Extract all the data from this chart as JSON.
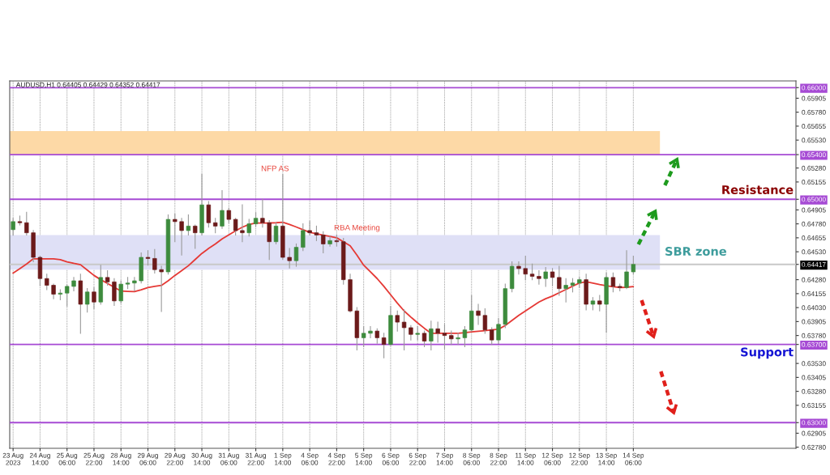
{
  "chart_data": {
    "type": "candlestick",
    "title": "AUDUSD,H1 0.64405 0.64429 0.64352 0.64417",
    "categories": [
      "23 Aug 2023",
      null,
      null,
      null,
      "24 Aug 14:00",
      null,
      null,
      null,
      "25 Aug 06:00",
      null,
      null,
      null,
      "25 Aug 22:00",
      null,
      null,
      null,
      "28 Aug 14:00",
      null,
      null,
      null,
      "29 Aug 06:00",
      null,
      null,
      null,
      "29 Aug 22:00",
      null,
      null,
      null,
      "30 Aug 14:00",
      null,
      null,
      null,
      "31 Aug 06:00",
      null,
      null,
      null,
      "31 Aug 22:00",
      null,
      null,
      null,
      "1 Sep 14:00",
      null,
      null,
      null,
      "4 Sep 06:00",
      null,
      null,
      null,
      "4 Sep 22:00",
      null,
      null,
      null,
      "5 Sep 14:00",
      null,
      null,
      null,
      "6 Sep 06:00",
      null,
      null,
      null,
      "6 Sep 22:00",
      null,
      null,
      null,
      "7 Sep 14:00",
      null,
      null,
      null,
      "8 Sep 06:00",
      null,
      null,
      null,
      "8 Sep 22:00",
      null,
      null,
      null,
      "11 Sep 14:00",
      null,
      null,
      null,
      "12 Sep 06:00",
      null,
      null,
      null,
      "12 Sep 22:00",
      null,
      null,
      null,
      "13 Sep 14:00",
      null,
      null,
      null,
      "14 Sep 06:00"
    ],
    "ohlc": [
      [
        0.64728,
        0.64829,
        0.64679,
        0.648
      ],
      [
        0.648,
        0.6485,
        0.6477,
        0.6479
      ],
      [
        0.6479,
        0.64884,
        0.6468,
        0.647
      ],
      [
        0.647,
        0.6472,
        0.6444,
        0.6448
      ],
      [
        0.6448,
        0.6449,
        0.6423,
        0.6429
      ],
      [
        0.6429,
        0.6433,
        0.6419,
        0.6423
      ],
      [
        0.6423,
        0.6424,
        0.6411,
        0.6415
      ],
      [
        0.6415,
        0.6419,
        0.641,
        0.6416
      ],
      [
        0.6416,
        0.6423,
        0.6404,
        0.6422
      ],
      [
        0.6422,
        0.643,
        0.6418,
        0.6427
      ],
      [
        0.6427,
        0.6433,
        0.638,
        0.6406
      ],
      [
        0.6406,
        0.642,
        0.6399,
        0.6417
      ],
      [
        0.6417,
        0.6421,
        0.6402,
        0.6408
      ],
      [
        0.6408,
        0.6441,
        0.6406,
        0.643
      ],
      [
        0.643,
        0.6436,
        0.6423,
        0.6426
      ],
      [
        0.6426,
        0.6429,
        0.6405,
        0.6409
      ],
      [
        0.6409,
        0.6427,
        0.6407,
        0.6424
      ],
      [
        0.6424,
        0.643,
        0.642,
        0.6425
      ],
      [
        0.6425,
        0.643,
        0.6418,
        0.6427
      ],
      [
        0.6427,
        0.6452,
        0.6425,
        0.6448
      ],
      [
        0.6448,
        0.6454,
        0.6441,
        0.6447
      ],
      [
        0.6447,
        0.6455,
        0.6434,
        0.6437
      ],
      [
        0.6437,
        0.644,
        0.63995,
        0.6435
      ],
      [
        0.6435,
        0.6486,
        0.6433,
        0.6482
      ],
      [
        0.6482,
        0.6487,
        0.6462,
        0.648
      ],
      [
        0.648,
        0.6483,
        0.645,
        0.6472
      ],
      [
        0.6472,
        0.6486,
        0.6468,
        0.6476
      ],
      [
        0.6476,
        0.6477,
        0.6456,
        0.647
      ],
      [
        0.647,
        0.65225,
        0.6468,
        0.6495
      ],
      [
        0.6495,
        0.6498,
        0.6475,
        0.6479
      ],
      [
        0.6479,
        0.6483,
        0.647,
        0.6476
      ],
      [
        0.6476,
        0.65077,
        0.6474,
        0.649
      ],
      [
        0.649,
        0.6492,
        0.6479,
        0.6482
      ],
      [
        0.6482,
        0.6483,
        0.6468,
        0.6472
      ],
      [
        0.6472,
        0.6495,
        0.6462,
        0.647
      ],
      [
        0.647,
        0.6482,
        0.6467,
        0.6478
      ],
      [
        0.6478,
        0.6488,
        0.6476,
        0.6483
      ],
      [
        0.6483,
        0.65,
        0.6475,
        0.6479
      ],
      [
        0.6479,
        0.6481,
        0.6446,
        0.6462
      ],
      [
        0.6462,
        0.6479,
        0.646,
        0.6476
      ],
      [
        0.6476,
        0.65222,
        0.6446,
        0.6448
      ],
      [
        0.6448,
        0.6456,
        0.64385,
        0.6445
      ],
      [
        0.6445,
        0.646,
        0.644,
        0.6457
      ],
      [
        0.6457,
        0.6478,
        0.6454,
        0.6472
      ],
      [
        0.6472,
        0.64805,
        0.6468,
        0.647
      ],
      [
        0.647,
        0.6476,
        0.6463,
        0.6468
      ],
      [
        0.6468,
        0.6471,
        0.6452,
        0.646
      ],
      [
        0.646,
        0.6467,
        0.6458,
        0.6463
      ],
      [
        0.6463,
        0.6468,
        0.6458,
        0.6462
      ],
      [
        0.6462,
        0.6465,
        0.6424,
        0.6428
      ],
      [
        0.6428,
        0.6433,
        0.6399,
        0.64
      ],
      [
        0.64,
        0.6403,
        0.6365,
        0.6376
      ],
      [
        0.6376,
        0.6386,
        0.6368,
        0.638
      ],
      [
        0.638,
        0.6386,
        0.6376,
        0.6382
      ],
      [
        0.6382,
        0.6384,
        0.6371,
        0.6376
      ],
      [
        0.6376,
        0.638,
        0.6358,
        0.637
      ],
      [
        0.637,
        0.6404,
        0.6369,
        0.6396
      ],
      [
        0.6396,
        0.64,
        0.6382,
        0.639
      ],
      [
        0.639,
        0.6401,
        0.6365,
        0.6385
      ],
      [
        0.6385,
        0.6387,
        0.6374,
        0.6379
      ],
      [
        0.6379,
        0.6386,
        0.6374,
        0.638
      ],
      [
        0.638,
        0.6382,
        0.6368,
        0.6373
      ],
      [
        0.6373,
        0.6391,
        0.6365,
        0.6384
      ],
      [
        0.6384,
        0.639,
        0.6372,
        0.638
      ],
      [
        0.638,
        0.6388,
        0.6366,
        0.6378
      ],
      [
        0.6378,
        0.6382,
        0.637,
        0.6375
      ],
      [
        0.6375,
        0.638,
        0.637,
        0.6376
      ],
      [
        0.6376,
        0.6386,
        0.6368,
        0.6383
      ],
      [
        0.6383,
        0.6414,
        0.6382,
        0.64
      ],
      [
        0.64,
        0.6406,
        0.6388,
        0.6396
      ],
      [
        0.6396,
        0.6402,
        0.638,
        0.6383
      ],
      [
        0.6383,
        0.6385,
        0.637,
        0.6374
      ],
      [
        0.6374,
        0.6393,
        0.6371,
        0.6388
      ],
      [
        0.6388,
        0.6424,
        0.6385,
        0.642
      ],
      [
        0.642,
        0.6444,
        0.6417,
        0.644
      ],
      [
        0.644,
        0.6444,
        0.6433,
        0.6438
      ],
      [
        0.6438,
        0.6449,
        0.6428,
        0.6433
      ],
      [
        0.6433,
        0.6442,
        0.6428,
        0.6431
      ],
      [
        0.6431,
        0.6436,
        0.6424,
        0.6429
      ],
      [
        0.6429,
        0.6439,
        0.6422,
        0.6435
      ],
      [
        0.6435,
        0.6438,
        0.6423,
        0.643
      ],
      [
        0.643,
        0.644,
        0.6414,
        0.642
      ],
      [
        0.642,
        0.6429,
        0.6408,
        0.6423
      ],
      [
        0.6423,
        0.6429,
        0.6417,
        0.6425
      ],
      [
        0.6425,
        0.643,
        0.6421,
        0.6428
      ],
      [
        0.6428,
        0.6433,
        0.6401,
        0.6406
      ],
      [
        0.6406,
        0.6412,
        0.6401,
        0.6409
      ],
      [
        0.6409,
        0.6414,
        0.64,
        0.6406
      ],
      [
        0.6406,
        0.6434,
        0.6381,
        0.643
      ],
      [
        0.643,
        0.6434,
        0.6417,
        0.6422
      ],
      [
        0.6422,
        0.6424,
        0.6418,
        0.6421
      ],
      [
        0.6421,
        0.6454,
        0.642,
        0.6435
      ],
      [
        0.6435,
        0.6449,
        0.6433,
        0.64417
      ]
    ],
    "series": [
      {
        "type": "line",
        "color": "#e53935",
        "values": [
          0.64339,
          0.64378,
          0.6442,
          0.64467,
          0.64467,
          0.64467,
          0.64467,
          0.6446,
          0.6444,
          0.64426,
          0.64414,
          0.64366,
          0.64318,
          0.6428,
          0.64246,
          0.64212,
          0.64178,
          0.64175,
          0.64173,
          0.6419,
          0.6421,
          0.6422,
          0.64229,
          0.6427,
          0.64318,
          0.6436,
          0.64405,
          0.6446,
          0.64515,
          0.6456,
          0.646,
          0.64645,
          0.64682,
          0.64718,
          0.6475,
          0.64775,
          0.64788,
          0.64788,
          0.64788,
          0.6479,
          0.64795,
          0.64774,
          0.64752,
          0.64728,
          0.64704,
          0.64692,
          0.64679,
          0.64667,
          0.64655,
          0.6462,
          0.64583,
          0.645,
          0.6441,
          0.6435,
          0.6429,
          0.6422,
          0.64145,
          0.6407,
          0.64,
          0.63945,
          0.63893,
          0.63845,
          0.638,
          0.638,
          0.638,
          0.638,
          0.638,
          0.63805,
          0.63812,
          0.63818,
          0.63824,
          0.6383,
          0.63836,
          0.6387,
          0.63915,
          0.6396,
          0.64,
          0.6404,
          0.6408,
          0.6411,
          0.64133,
          0.64163,
          0.64192,
          0.64222,
          0.6425,
          0.64262,
          0.6425,
          0.64236,
          0.64226,
          0.64217,
          0.6421,
          0.64212,
          0.64219
        ]
      }
    ],
    "ylim": [
      0.6277,
      0.6606
    ],
    "yticks": [
      {
        "value": 0.6278,
        "label": "0.62780"
      },
      {
        "value": 0.62905,
        "label": "0.62905"
      },
      {
        "value": 0.63,
        "label": "0.63000"
      },
      {
        "value": 0.63155,
        "label": "0.63155"
      },
      {
        "value": 0.6328,
        "label": "0.63280"
      },
      {
        "value": 0.63405,
        "label": "0.63405"
      },
      {
        "value": 0.6353,
        "label": "0.63530"
      },
      {
        "value": 0.637,
        "label": "0.63700"
      },
      {
        "value": 0.6378,
        "label": "0.63780"
      },
      {
        "value": 0.63905,
        "label": "0.63905"
      },
      {
        "value": 0.6403,
        "label": "0.64030"
      },
      {
        "value": 0.64155,
        "label": "0.64155"
      },
      {
        "value": 0.6428,
        "label": "0.64280"
      },
      {
        "value": 0.64417,
        "label": "0.64417"
      },
      {
        "value": 0.6453,
        "label": "0.64530"
      },
      {
        "value": 0.64655,
        "label": "0.64655"
      },
      {
        "value": 0.6478,
        "label": "0.64780"
      },
      {
        "value": 0.64905,
        "label": "0.64905"
      },
      {
        "value": 0.65,
        "label": "0.65000"
      },
      {
        "value": 0.65155,
        "label": "0.65155"
      },
      {
        "value": 0.6528,
        "label": "0.65280"
      },
      {
        "value": 0.654,
        "label": "0.65400"
      },
      {
        "value": 0.6553,
        "label": "0.65530"
      },
      {
        "value": 0.65655,
        "label": "0.65655"
      },
      {
        "value": 0.6578,
        "label": "0.65780"
      },
      {
        "value": 0.65905,
        "label": "0.65905"
      },
      {
        "value": 0.66,
        "label": "0.66000"
      }
    ],
    "ref_lines": [
      {
        "axis": "y",
        "value": 0.66,
        "color": "#a64ad4"
      },
      {
        "axis": "y",
        "value": 0.654,
        "color": "#a64ad4"
      },
      {
        "axis": "y",
        "value": 0.65,
        "label": "Resistance",
        "color": "#a64ad4"
      },
      {
        "axis": "y",
        "value": 0.64417,
        "color": "#c8c8c8"
      },
      {
        "axis": "y",
        "value": 0.637,
        "label": "Support",
        "color": "#a64ad4"
      },
      {
        "axis": "y",
        "value": 0.63,
        "color": "#a64ad4"
      }
    ],
    "bands": [
      {
        "axis": "y",
        "from": 0.654,
        "to": 0.6561,
        "color": "#fdd9a6"
      },
      {
        "axis": "y",
        "from": 0.6437,
        "to": 0.6468,
        "label": "SBR zone",
        "color": "#dfe0f6"
      }
    ],
    "annotations": [
      "NFP AS",
      "RBA Meeting"
    ],
    "grid": "x"
  }
}
